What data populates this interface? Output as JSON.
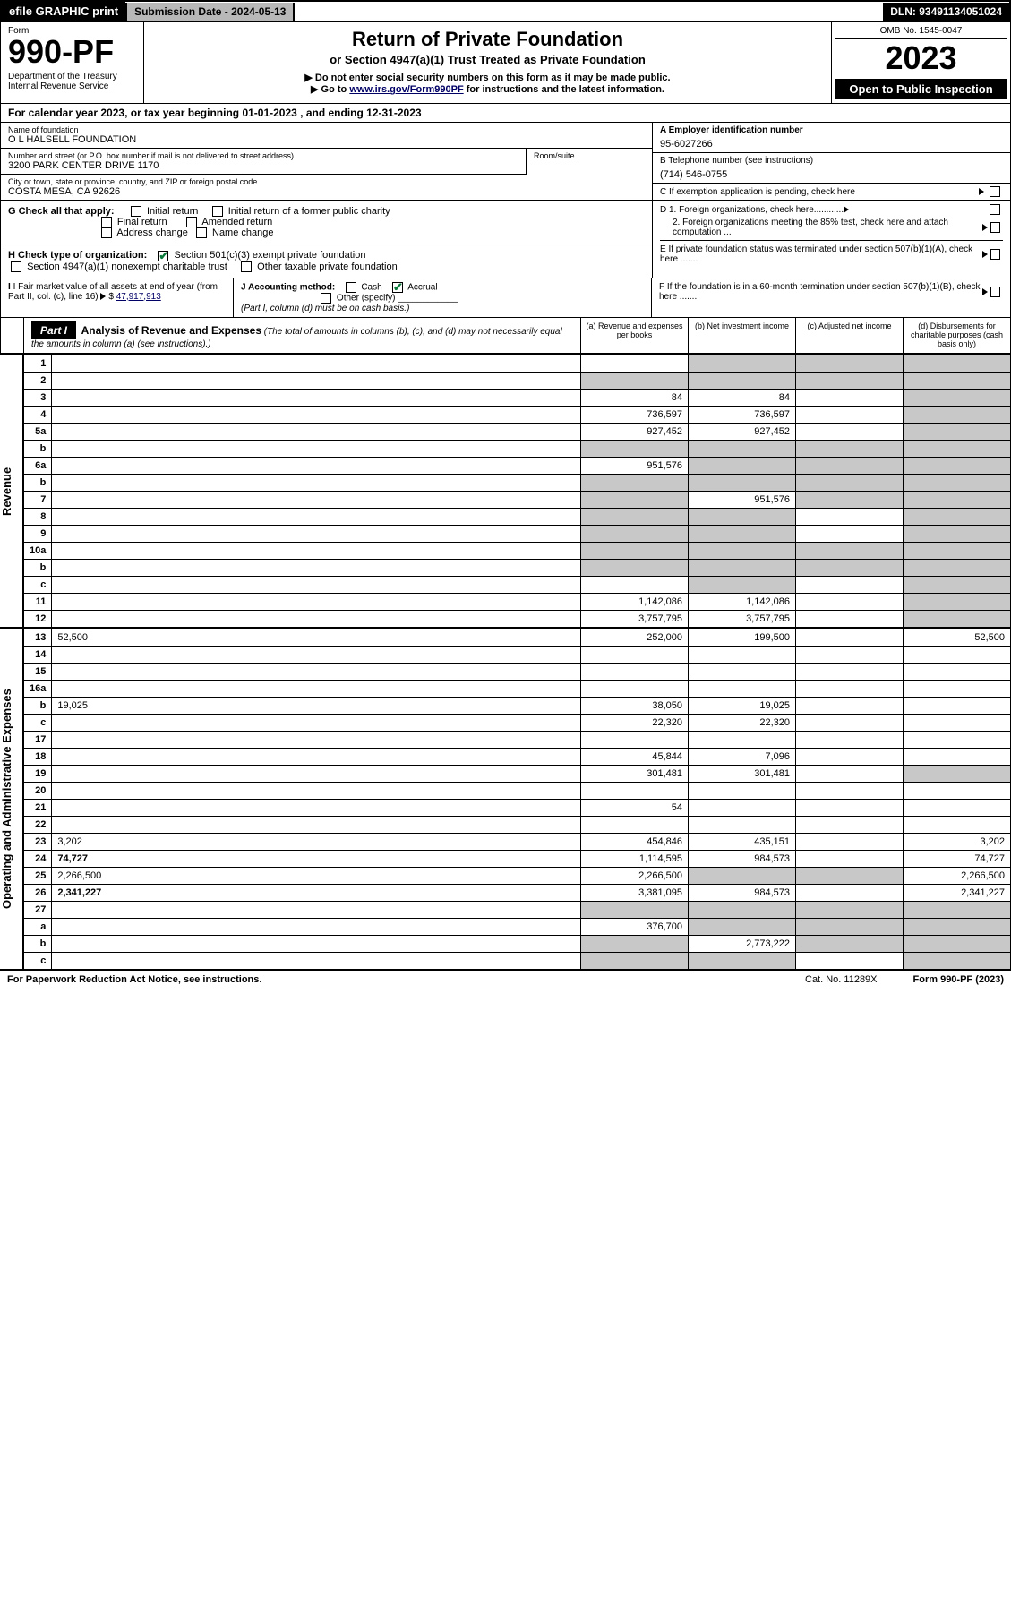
{
  "topbar": {
    "efile": "efile GRAPHIC print",
    "submission": "Submission Date - 2024-05-13",
    "dln": "DLN: 93491134051024"
  },
  "header": {
    "form_label": "Form",
    "form_num": "990-PF",
    "dept": "Department of the Treasury\nInternal Revenue Service",
    "title": "Return of Private Foundation",
    "sub1": "or Section 4947(a)(1) Trust Treated as Private Foundation",
    "sub2": "▶ Do not enter social security numbers on this form as it may be made public.",
    "sub3_pre": "▶ Go to ",
    "sub3_link": "www.irs.gov/Form990PF",
    "sub3_post": " for instructions and the latest information.",
    "omb": "OMB No. 1545-0047",
    "year": "2023",
    "open": "Open to Public Inspection"
  },
  "cal": "For calendar year 2023, or tax year beginning 01-01-2023                          , and ending 12-31-2023",
  "id": {
    "name_label": "Name of foundation",
    "name": "O L HALSELL FOUNDATION",
    "addr_label": "Number and street (or P.O. box number if mail is not delivered to street address)",
    "addr": "3200 PARK CENTER DRIVE 1170",
    "room_label": "Room/suite",
    "city_label": "City or town, state or province, country, and ZIP or foreign postal code",
    "city": "COSTA MESA, CA  92626",
    "a_label": "A Employer identification number",
    "a_val": "95-6027266",
    "b_label": "B Telephone number (see instructions)",
    "b_val": "(714) 546-0755",
    "c_label": "C If exemption application is pending, check here"
  },
  "g": {
    "label": "G Check all that apply:",
    "o1": "Initial return",
    "o2": "Initial return of a former public charity",
    "o3": "Final return",
    "o4": "Amended return",
    "o5": "Address change",
    "o6": "Name change"
  },
  "h": {
    "label": "H Check type of organization:",
    "o1": "Section 501(c)(3) exempt private foundation",
    "o2": "Section 4947(a)(1) nonexempt charitable trust",
    "o3": "Other taxable private foundation"
  },
  "d": {
    "d1": "D 1. Foreign organizations, check here............",
    "d2": "2. Foreign organizations meeting the 85% test, check here and attach computation ...",
    "e": "E  If private foundation status was terminated under section 507(b)(1)(A), check here .......",
    "f": "F  If the foundation is in a 60-month termination under section 507(b)(1)(B), check here ......."
  },
  "ij": {
    "i_label": "I Fair market value of all assets at end of year (from Part II, col. (c), line 16)",
    "i_val": "47,917,913",
    "j_label": "J Accounting method:",
    "j_cash": "Cash",
    "j_accrual": "Accrual",
    "j_other": "Other (specify)",
    "j_note": "(Part I, column (d) must be on cash basis.)"
  },
  "part1": {
    "hdr": "Part I",
    "title": "Analysis of Revenue and Expenses",
    "note": "(The total of amounts in columns (b), (c), and (d) may not necessarily equal the amounts in column (a) (see instructions).)",
    "col_a": "(a)   Revenue and expenses per books",
    "col_b": "(b)   Net investment income",
    "col_c": "(c)   Adjusted net income",
    "col_d": "(d)  Disbursements for charitable purposes (cash basis only)"
  },
  "side_rev": "Revenue",
  "side_exp": "Operating and Administrative Expenses",
  "rows": [
    {
      "n": "1",
      "d": "",
      "a": "",
      "b": "",
      "c": "",
      "sb": true,
      "sc": true,
      "sd": true
    },
    {
      "n": "2",
      "d": "",
      "a": "",
      "b": "",
      "c": "",
      "sa": true,
      "sb": true,
      "sc": true,
      "sd": true
    },
    {
      "n": "3",
      "d": "",
      "a": "84",
      "b": "84",
      "c": "",
      "sd": true
    },
    {
      "n": "4",
      "d": "",
      "a": "736,597",
      "b": "736,597",
      "c": "",
      "sd": true
    },
    {
      "n": "5a",
      "d": "",
      "a": "927,452",
      "b": "927,452",
      "c": "",
      "sd": true
    },
    {
      "n": "b",
      "d": "",
      "a": "",
      "b": "",
      "c": "",
      "sa": true,
      "sb": true,
      "sc": true,
      "sd": true
    },
    {
      "n": "6a",
      "d": "",
      "a": "951,576",
      "b": "",
      "c": "",
      "sb": true,
      "sc": true,
      "sd": true
    },
    {
      "n": "b",
      "d": "",
      "a": "",
      "b": "",
      "c": "",
      "sa": true,
      "sb": true,
      "sc": true,
      "sd": true
    },
    {
      "n": "7",
      "d": "",
      "a": "",
      "b": "951,576",
      "c": "",
      "sa": true,
      "sc": true,
      "sd": true
    },
    {
      "n": "8",
      "d": "",
      "a": "",
      "b": "",
      "c": "",
      "sa": true,
      "sb": true,
      "sd": true
    },
    {
      "n": "9",
      "d": "",
      "a": "",
      "b": "",
      "c": "",
      "sa": true,
      "sb": true,
      "sd": true
    },
    {
      "n": "10a",
      "d": "",
      "a": "",
      "b": "",
      "c": "",
      "sa": true,
      "sb": true,
      "sc": true,
      "sd": true
    },
    {
      "n": "b",
      "d": "",
      "a": "",
      "b": "",
      "c": "",
      "sa": true,
      "sb": true,
      "sc": true,
      "sd": true
    },
    {
      "n": "c",
      "d": "",
      "a": "",
      "b": "",
      "c": "",
      "sb": true,
      "sd": true
    },
    {
      "n": "11",
      "d": "",
      "a": "1,142,086",
      "b": "1,142,086",
      "c": "",
      "sd": true
    },
    {
      "n": "12",
      "d": "",
      "a": "3,757,795",
      "b": "3,757,795",
      "c": "",
      "bold": true,
      "sd": true
    }
  ],
  "rows2": [
    {
      "n": "13",
      "d": "52,500",
      "a": "252,000",
      "b": "199,500",
      "c": ""
    },
    {
      "n": "14",
      "d": "",
      "a": "",
      "b": "",
      "c": ""
    },
    {
      "n": "15",
      "d": "",
      "a": "",
      "b": "",
      "c": ""
    },
    {
      "n": "16a",
      "d": "",
      "a": "",
      "b": "",
      "c": ""
    },
    {
      "n": "b",
      "d": "19,025",
      "a": "38,050",
      "b": "19,025",
      "c": ""
    },
    {
      "n": "c",
      "d": "",
      "a": "22,320",
      "b": "22,320",
      "c": ""
    },
    {
      "n": "17",
      "d": "",
      "a": "",
      "b": "",
      "c": ""
    },
    {
      "n": "18",
      "d": "",
      "a": "45,844",
      "b": "7,096",
      "c": ""
    },
    {
      "n": "19",
      "d": "",
      "a": "301,481",
      "b": "301,481",
      "c": "",
      "sd": true
    },
    {
      "n": "20",
      "d": "",
      "a": "",
      "b": "",
      "c": ""
    },
    {
      "n": "21",
      "d": "",
      "a": "54",
      "b": "",
      "c": ""
    },
    {
      "n": "22",
      "d": "",
      "a": "",
      "b": "",
      "c": ""
    },
    {
      "n": "23",
      "d": "3,202",
      "a": "454,846",
      "b": "435,151",
      "c": ""
    },
    {
      "n": "24",
      "d": "74,727",
      "a": "1,114,595",
      "b": "984,573",
      "c": "",
      "bold": true
    },
    {
      "n": "25",
      "d": "2,266,500",
      "a": "2,266,500",
      "b": "",
      "c": "",
      "sb": true,
      "sc": true
    },
    {
      "n": "26",
      "d": "2,341,227",
      "a": "3,381,095",
      "b": "984,573",
      "c": "",
      "bold": true
    },
    {
      "n": "27",
      "d": "",
      "a": "",
      "b": "",
      "c": "",
      "sa": true,
      "sb": true,
      "sc": true,
      "sd": true
    },
    {
      "n": "a",
      "d": "",
      "a": "376,700",
      "b": "",
      "c": "",
      "bold": true,
      "sb": true,
      "sc": true,
      "sd": true
    },
    {
      "n": "b",
      "d": "",
      "a": "",
      "b": "2,773,222",
      "c": "",
      "bold": true,
      "sa": true,
      "sc": true,
      "sd": true
    },
    {
      "n": "c",
      "d": "",
      "a": "",
      "b": "",
      "c": "",
      "bold": true,
      "sa": true,
      "sb": true,
      "sd": true
    }
  ],
  "footer": {
    "left": "For Paperwork Reduction Act Notice, see instructions.",
    "mid": "Cat. No. 11289X",
    "right": "Form 990-PF (2023)"
  }
}
